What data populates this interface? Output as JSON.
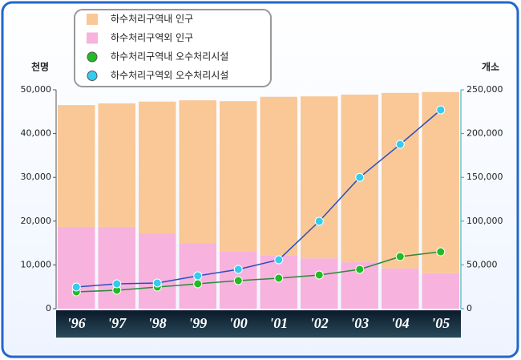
{
  "chart_data": {
    "type": "bar_line",
    "y_unit": "천명",
    "y2_unit": "개소",
    "categories": [
      "'96",
      "'97",
      "'98",
      "'99",
      "'00",
      "'01",
      "'02",
      "'03",
      "'04",
      "'05"
    ],
    "series": [
      {
        "name": "하수처리구역내 인구",
        "type": "bar",
        "color": "#f9c896",
        "values": [
          27800,
          28200,
          30100,
          32600,
          34400,
          36300,
          37000,
          38300,
          40100,
          41400
        ]
      },
      {
        "name": "하수처리구역외 인구",
        "type": "bar",
        "color": "#f7b2de",
        "values": [
          18700,
          18700,
          17200,
          15000,
          13000,
          12100,
          11500,
          10600,
          9200,
          8100
        ]
      },
      {
        "name": "하수처리구역내 오수처리시설",
        "type": "line",
        "axis": "y2",
        "color": "#2a8a3a",
        "marker_color": "#22bb22",
        "values": [
          19200,
          21100,
          24700,
          28400,
          32000,
          34800,
          38500,
          44900,
          59500,
          65000
        ]
      },
      {
        "name": "하수처리구역외 오수처리시설",
        "type": "line",
        "axis": "y2",
        "color": "#2a4fc0",
        "marker_color": "#33ccee",
        "values": [
          24700,
          28400,
          29300,
          37500,
          44900,
          55900,
          99800,
          150000,
          187700,
          227000
        ]
      }
    ],
    "ylim": [
      0,
      50000
    ],
    "yticks": [
      0,
      {
        "value": 10000,
        "label": "10,000"
      },
      {
        "value": 20000,
        "label": "20,000"
      },
      {
        "value": 30000,
        "label": "30,000"
      },
      {
        "value": 40000,
        "label": "40,000"
      },
      {
        "value": 50000,
        "label": "50,000"
      }
    ],
    "y2lim": [
      0,
      250000
    ],
    "y2ticks": [
      0,
      {
        "value": 50000,
        "label": "50,000"
      },
      {
        "value": 100000,
        "label": "100,000"
      },
      {
        "value": 150000,
        "label": "150,000"
      },
      {
        "value": 200000,
        "label": "200,000"
      },
      {
        "value": 250000,
        "label": "250,000"
      }
    ]
  }
}
